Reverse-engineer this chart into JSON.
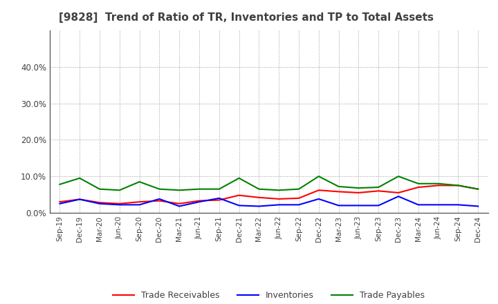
{
  "title": "[9828]  Trend of Ratio of TR, Inventories and TP to Total Assets",
  "x_labels": [
    "Sep-19",
    "Dec-19",
    "Mar-20",
    "Jun-20",
    "Sep-20",
    "Dec-20",
    "Mar-21",
    "Jun-21",
    "Sep-21",
    "Dec-21",
    "Mar-22",
    "Jun-22",
    "Sep-22",
    "Dec-22",
    "Mar-23",
    "Jun-23",
    "Sep-23",
    "Dec-23",
    "Mar-24",
    "Jun-24",
    "Sep-24",
    "Dec-24"
  ],
  "trade_receivables": [
    0.03,
    0.037,
    0.028,
    0.025,
    0.03,
    0.033,
    0.025,
    0.033,
    0.035,
    0.048,
    0.042,
    0.038,
    0.04,
    0.062,
    0.058,
    0.055,
    0.06,
    0.055,
    0.07,
    0.075,
    0.075,
    0.065
  ],
  "inventories": [
    0.025,
    0.037,
    0.025,
    0.022,
    0.022,
    0.038,
    0.018,
    0.03,
    0.04,
    0.02,
    0.018,
    0.022,
    0.022,
    0.038,
    0.02,
    0.02,
    0.02,
    0.045,
    0.022,
    0.022,
    0.022,
    0.018
  ],
  "trade_payables": [
    0.078,
    0.095,
    0.065,
    0.062,
    0.085,
    0.065,
    0.062,
    0.065,
    0.065,
    0.095,
    0.065,
    0.062,
    0.065,
    0.1,
    0.072,
    0.068,
    0.07,
    0.1,
    0.08,
    0.08,
    0.075,
    0.065
  ],
  "tr_color": "#ff0000",
  "inv_color": "#0000ff",
  "tp_color": "#008000",
  "ylim": [
    0.0,
    0.5
  ],
  "yticks": [
    0.0,
    0.1,
    0.2,
    0.3,
    0.4
  ],
  "background_color": "#ffffff",
  "grid_color": "#999999",
  "title_color": "#404040"
}
